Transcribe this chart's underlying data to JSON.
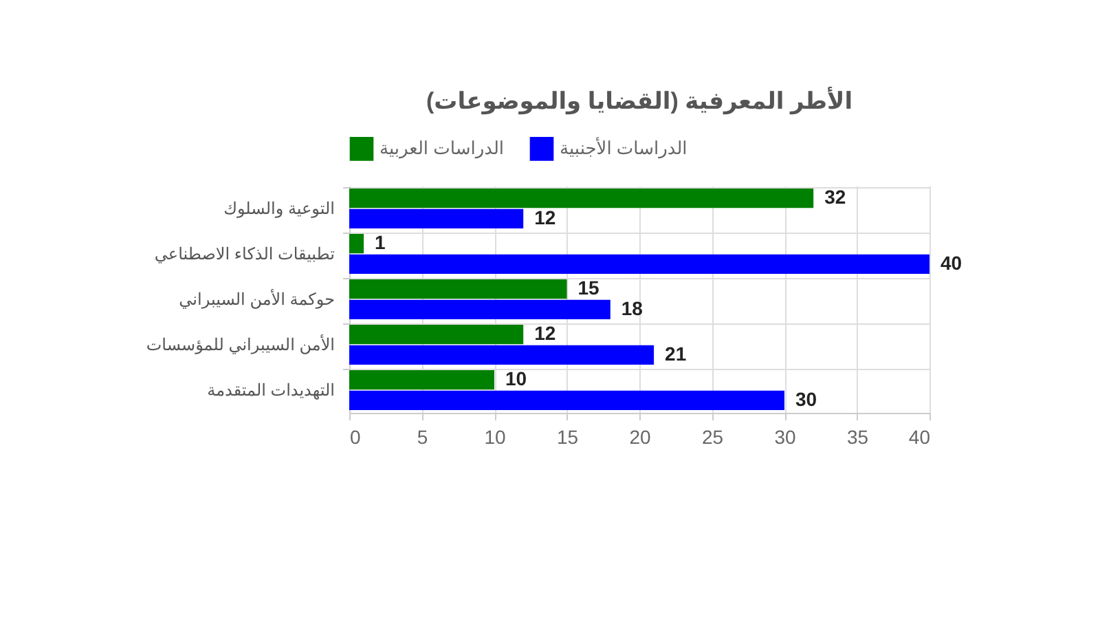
{
  "chart_data": {
    "type": "bar",
    "orientation": "horizontal",
    "title": "الأطر المعرفية (القضايا والموضوعات)",
    "categories": [
      "التوعية والسلوك",
      "تطبيقات الذكاء الاصطناعي",
      "حوكمة الأمن السيبراني",
      "الأمن السيبراني للمؤسسات",
      "التهديدات المتقدمة"
    ],
    "series": [
      {
        "name": "الدراسات العربية",
        "color": "#008000",
        "values": [
          32,
          1,
          15,
          12,
          10
        ]
      },
      {
        "name": "الدراسات الأجنبية",
        "color": "#0000ff",
        "values": [
          12,
          40,
          18,
          21,
          30
        ]
      }
    ],
    "xlim": [
      0,
      40
    ],
    "xticks": [
      0,
      5,
      10,
      15,
      20,
      25,
      30,
      35,
      40
    ],
    "grid": true,
    "legend": "top",
    "data_labels": true
  }
}
